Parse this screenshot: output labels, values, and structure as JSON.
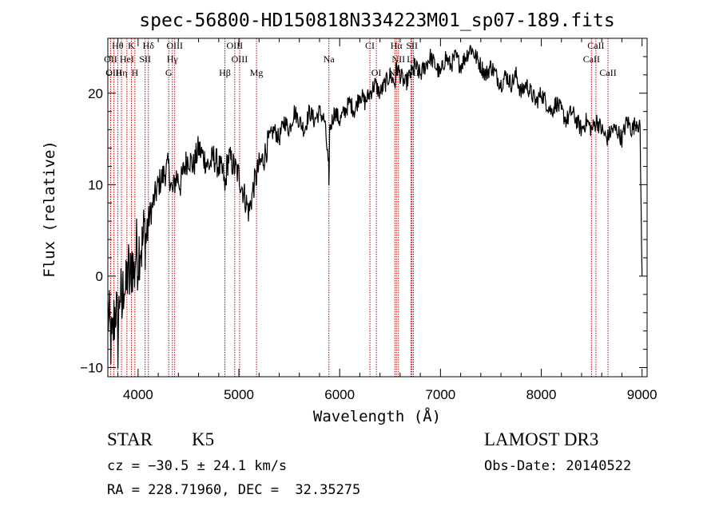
{
  "chart_data": {
    "type": "line",
    "title": "spec-56800-HD150818N334223M01_sp07-189.fits",
    "xlabel": "Wavelength (Å)",
    "ylabel": "Flux (relative)",
    "xlim": [
      3700,
      9050
    ],
    "ylim": [
      -11,
      26
    ],
    "x_ticks": [
      4000,
      5000,
      6000,
      7000,
      8000,
      9000
    ],
    "y_ticks": [
      -10,
      0,
      10,
      20
    ],
    "x_tick_labels": [
      "4000",
      "5000",
      "6000",
      "7000",
      "8000",
      "9000"
    ],
    "y_tick_labels": [
      "−10",
      "0",
      "10",
      "20"
    ],
    "grid": false,
    "legend": "none",
    "series": [
      {
        "x": [
          3700,
          3720,
          3740,
          3760,
          3780,
          3800,
          3820,
          3840,
          3860,
          3880,
          3900,
          3920,
          3940,
          3960,
          3980,
          4000,
          4020,
          4040,
          4060,
          4080,
          4100,
          4150,
          4200,
          4250,
          4300,
          4340,
          4380,
          4420,
          4460,
          4500,
          4550,
          4600,
          4650,
          4700,
          4750,
          4800,
          4850,
          4861,
          4880,
          4900,
          4950,
          5000,
          5050,
          5100,
          5150,
          5175,
          5200,
          5250,
          5300,
          5350,
          5400,
          5450,
          5500,
          5550,
          5600,
          5650,
          5700,
          5750,
          5800,
          5850,
          5890,
          5893,
          5900,
          5950,
          6000,
          6050,
          6100,
          6150,
          6200,
          6250,
          6300,
          6350,
          6400,
          6450,
          6500,
          6550,
          6563,
          6600,
          6650,
          6700,
          6750,
          6800,
          6850,
          6900,
          6950,
          7000,
          7050,
          7100,
          7150,
          7200,
          7250,
          7300,
          7350,
          7400,
          7450,
          7500,
          7550,
          7600,
          7650,
          7700,
          7750,
          7800,
          7850,
          7900,
          7950,
          8000,
          8050,
          8100,
          8150,
          8200,
          8250,
          8300,
          8350,
          8400,
          8450,
          8500,
          8550,
          8600,
          8650,
          8700,
          8750,
          8800,
          8850,
          8900,
          8950,
          8980,
          9000
        ],
        "y": [
          -4,
          -6,
          -8,
          -5,
          -3,
          -7,
          -1,
          -4,
          0,
          -2,
          1,
          -1,
          2,
          0,
          3,
          2,
          4,
          3,
          5,
          4,
          6,
          8,
          10,
          11,
          12,
          9,
          11,
          10,
          12,
          13,
          12,
          14,
          13,
          12,
          13,
          12,
          11,
          9,
          12,
          13,
          12,
          11,
          9,
          7,
          10,
          11,
          12,
          13,
          15,
          16,
          15,
          17,
          16,
          18,
          17,
          16,
          18,
          17,
          18,
          17,
          12,
          9,
          16,
          18,
          17,
          18,
          19,
          18,
          20,
          19,
          20,
          21,
          20,
          21,
          22,
          21,
          23,
          22,
          21,
          22,
          23,
          22,
          23,
          24,
          23,
          22,
          24,
          23,
          24,
          23,
          24,
          25,
          24,
          23,
          22,
          23,
          22,
          21,
          22,
          21,
          22,
          20,
          21,
          20,
          19,
          20,
          19,
          18,
          19,
          18,
          17,
          18,
          17,
          16,
          17,
          16,
          17,
          16,
          15,
          16,
          16,
          15,
          17,
          16,
          17,
          16,
          0
        ]
      }
    ],
    "line_markers": [
      {
        "label": "Hθ",
        "wavelength": 3798,
        "row": 0
      },
      {
        "label": "K",
        "wavelength": 3934,
        "row": 0
      },
      {
        "label": "Hδ",
        "wavelength": 4102,
        "row": 0
      },
      {
        "label": "OIII",
        "wavelength": 4363,
        "row": 0
      },
      {
        "label": "OIII",
        "wavelength": 4959,
        "row": 0
      },
      {
        "label": "Na",
        "wavelength": 5893,
        "row": 1
      },
      {
        "label": "CI",
        "wavelength": 6300,
        "row": 0
      },
      {
        "label": "Hα",
        "wavelength": 6563,
        "row": 0
      },
      {
        "label": "SII",
        "wavelength": 6717,
        "row": 0
      },
      {
        "label": "CaII",
        "wavelength": 8542,
        "row": 0
      },
      {
        "label": "OII",
        "wavelength": 3727,
        "row": 1
      },
      {
        "label": "HeI",
        "wavelength": 3889,
        "row": 1
      },
      {
        "label": "SII",
        "wavelength": 4070,
        "row": 1
      },
      {
        "label": "Hγ",
        "wavelength": 4340,
        "row": 1
      },
      {
        "label": "OIII",
        "wavelength": 5007,
        "row": 1
      },
      {
        "label": "NII",
        "wavelength": 6583,
        "row": 1
      },
      {
        "label": "Li",
        "wavelength": 6708,
        "row": 1
      },
      {
        "label": "CaII",
        "wavelength": 8498,
        "row": 1
      },
      {
        "label": "OIII",
        "wavelength": 3760,
        "row": 2
      },
      {
        "label": "Hη",
        "wavelength": 3835,
        "row": 2
      },
      {
        "label": "H",
        "wavelength": 3968,
        "row": 2
      },
      {
        "label": "G",
        "wavelength": 4304,
        "row": 2
      },
      {
        "label": "Hβ",
        "wavelength": 4861,
        "row": 2
      },
      {
        "label": "Mg",
        "wavelength": 5175,
        "row": 2
      },
      {
        "label": "OI",
        "wavelength": 6364,
        "row": 2
      },
      {
        "label": "NII",
        "wavelength": 6548,
        "row": 2
      },
      {
        "label": "SII",
        "wavelength": 6731,
        "row": 2
      },
      {
        "label": "CaII",
        "wavelength": 8662,
        "row": 2
      }
    ]
  },
  "info": {
    "class_label": "STAR",
    "subclass": "K5",
    "survey": "LAMOST DR3",
    "cz": "cz = −30.5 ± 24.1 km/s",
    "obs_date": "Obs-Date: 20140522",
    "radec": "RA = 228.71960, DEC =  32.35275"
  },
  "colors": {
    "line_marker": "#cc0000",
    "spectrum": "#000000",
    "axes": "#000000"
  }
}
